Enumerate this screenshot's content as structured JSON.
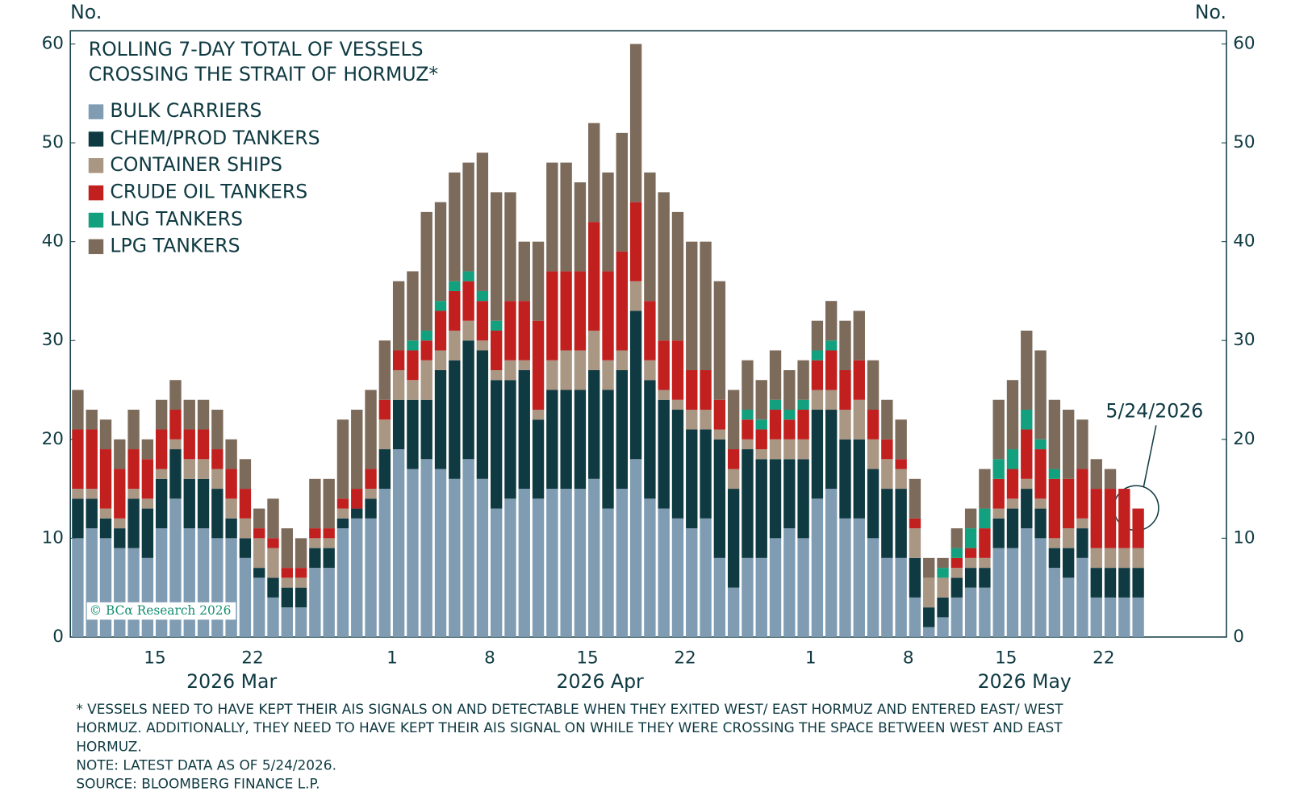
{
  "chart_data": {
    "type": "stacked_bar",
    "title": [
      "ROLLING 7-DAY TOTAL OF VESSELS",
      "CROSSING THE STRAIT OF HORMUZ*"
    ],
    "y_label": "No.",
    "y2_label": "No.",
    "categories": [
      null,
      null,
      null,
      null,
      null,
      null,
      "15",
      null,
      null,
      null,
      null,
      null,
      null,
      "22",
      null,
      null,
      null,
      null,
      null,
      null,
      null,
      null,
      null,
      "1",
      null,
      null,
      null,
      null,
      null,
      null,
      "8",
      null,
      null,
      null,
      null,
      null,
      null,
      "15",
      null,
      null,
      null,
      null,
      null,
      null,
      "22",
      null,
      null,
      null,
      null,
      null,
      null,
      null,
      null,
      "1",
      null,
      null,
      null,
      null,
      null,
      null,
      "8",
      null,
      null,
      null,
      null,
      null,
      null,
      "15",
      null,
      null,
      null,
      null,
      null,
      null,
      "22",
      null,
      null
    ],
    "x_group_labels": [
      "2026 Mar",
      "2026 Apr",
      "2026 May"
    ],
    "series": [
      {
        "name": "BULK CARRIERS",
        "color": "#7f9cb3",
        "values": [
          10,
          11,
          10,
          9,
          9,
          8,
          11,
          14,
          11,
          11,
          10,
          10,
          8,
          6,
          4,
          3,
          3,
          7,
          7,
          11,
          12,
          12,
          15,
          19,
          17,
          18,
          17,
          16,
          18,
          16,
          13,
          14,
          15,
          14,
          15,
          15,
          15,
          16,
          13,
          15,
          18,
          14,
          13,
          12,
          11,
          12,
          8,
          5,
          8,
          8,
          10,
          11,
          10,
          14,
          15,
          12,
          12,
          10,
          8,
          8,
          4,
          1,
          2,
          4,
          5,
          5,
          9,
          9,
          11,
          10,
          7,
          6,
          8,
          4,
          4,
          4,
          4
        ]
      },
      {
        "name": "CHEM/PROD TANKERS",
        "color": "#0f3a42",
        "values": [
          4,
          3,
          2,
          2,
          5,
          5,
          5,
          5,
          5,
          5,
          5,
          2,
          2,
          1,
          2,
          2,
          2,
          2,
          2,
          1,
          1,
          2,
          4,
          5,
          7,
          6,
          10,
          12,
          12,
          13,
          13,
          12,
          12,
          8,
          10,
          10,
          10,
          11,
          12,
          12,
          15,
          12,
          11,
          11,
          10,
          9,
          12,
          10,
          11,
          10,
          8,
          7,
          8,
          9,
          8,
          8,
          8,
          7,
          7,
          7,
          4,
          2,
          2,
          2,
          2,
          2,
          3,
          4,
          4,
          3,
          2,
          3,
          3,
          3,
          3,
          3,
          3
        ]
      },
      {
        "name": "CONTAINER SHIPS",
        "color": "#a99683",
        "values": [
          1,
          1,
          1,
          1,
          1,
          1,
          1,
          1,
          2,
          2,
          2,
          2,
          2,
          3,
          3,
          1,
          1,
          1,
          1,
          1,
          0,
          1,
          3,
          3,
          2,
          4,
          2,
          3,
          2,
          1,
          1,
          2,
          1,
          1,
          3,
          4,
          4,
          4,
          3,
          2,
          3,
          2,
          1,
          1,
          2,
          2,
          1,
          2,
          1,
          1,
          2,
          2,
          2,
          2,
          2,
          3,
          4,
          3,
          3,
          2,
          3,
          3,
          2,
          1,
          1,
          1,
          1,
          1,
          1,
          1,
          1,
          2,
          1,
          2,
          2,
          2,
          2
        ]
      },
      {
        "name": "CRUDE OIL TANKERS",
        "color": "#c21f1f",
        "values": [
          6,
          6,
          6,
          5,
          4,
          4,
          4,
          3,
          3,
          3,
          2,
          3,
          3,
          1,
          1,
          1,
          1,
          1,
          1,
          1,
          2,
          2,
          2,
          2,
          3,
          2,
          4,
          4,
          4,
          4,
          4,
          6,
          6,
          9,
          9,
          8,
          8,
          11,
          9,
          10,
          8,
          6,
          5,
          6,
          4,
          4,
          3,
          2,
          2,
          2,
          3,
          2,
          3,
          3,
          4,
          4,
          4,
          3,
          2,
          1,
          1,
          0,
          0,
          1,
          1,
          3,
          3,
          3,
          5,
          5,
          6,
          5,
          5,
          6,
          6,
          6,
          4
        ]
      },
      {
        "name": "LNG TANKERS",
        "color": "#13a07e",
        "values": [
          0,
          0,
          0,
          0,
          0,
          0,
          0,
          0,
          0,
          0,
          0,
          0,
          0,
          0,
          0,
          0,
          0,
          0,
          0,
          0,
          0,
          0,
          0,
          0,
          1,
          1,
          1,
          1,
          1,
          1,
          1,
          0,
          0,
          0,
          0,
          0,
          0,
          0,
          0,
          0,
          0,
          0,
          0,
          0,
          0,
          0,
          0,
          0,
          1,
          1,
          1,
          1,
          1,
          1,
          1,
          0,
          0,
          0,
          0,
          0,
          0,
          0,
          1,
          1,
          2,
          2,
          2,
          2,
          2,
          1,
          1,
          0,
          0,
          0,
          0,
          0,
          0
        ]
      },
      {
        "name": "LPG TANKERS",
        "color": "#7c6a5a",
        "values": [
          4,
          2,
          3,
          3,
          4,
          2,
          3,
          3,
          3,
          3,
          4,
          3,
          3,
          2,
          4,
          4,
          3,
          5,
          5,
          8,
          8,
          8,
          6,
          7,
          7,
          12,
          10,
          11,
          11,
          14,
          13,
          11,
          6,
          8,
          11,
          11,
          9,
          10,
          10,
          12,
          16,
          13,
          15,
          13,
          13,
          13,
          12,
          6,
          5,
          4,
          5,
          4,
          4,
          3,
          4,
          5,
          5,
          5,
          4,
          4,
          4,
          2,
          1,
          2,
          2,
          4,
          6,
          7,
          8,
          9,
          7,
          7,
          5,
          3,
          2,
          0,
          0
        ]
      }
    ],
    "ylim": [
      0,
      60
    ],
    "yticks": [
      0,
      10,
      20,
      30,
      40,
      50,
      60
    ],
    "y2lim": [
      0,
      60
    ],
    "y2ticks": [
      0,
      10,
      20,
      30,
      40,
      50,
      60
    ],
    "legend": "top-left",
    "annotation": "5/24/2026",
    "watermark": "© BCα Research 2026",
    "notes": [
      "* VESSELS NEED TO HAVE KEPT THEIR AIS SIGNALS ON AND DETECTABLE WHEN THEY EXITED WEST/ EAST HORMUZ AND ENTERED EAST/ WEST",
      "HORMUZ. ADDITIONALLY, THEY NEED TO HAVE KEPT THEIR AIS SIGNAL ON WHILE THEY WERE CROSSING THE SPACE BETWEEN WEST AND EAST",
      "HORMUZ.",
      "NOTE: LATEST DATA AS OF 5/24/2026.",
      "SOURCE: BLOOMBERG FINANCE L.P."
    ]
  }
}
